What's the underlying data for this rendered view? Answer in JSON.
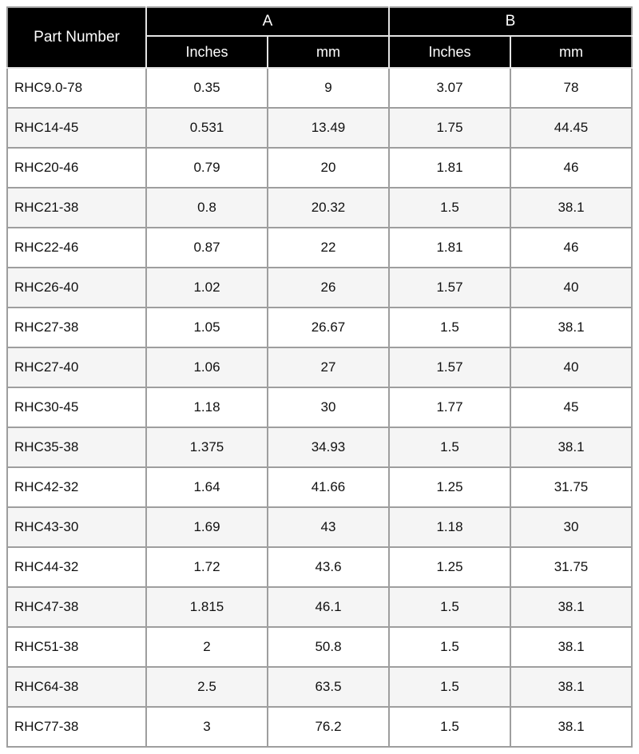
{
  "chart_data": {
    "type": "table",
    "title": "",
    "column_groups": [
      {
        "label": "Part Number",
        "span": 1
      },
      {
        "label": "A",
        "span": 2
      },
      {
        "label": "B",
        "span": 2
      }
    ],
    "sub_headers": [
      "Inches",
      "mm",
      "Inches",
      "mm"
    ],
    "rows": [
      [
        "RHC9.0-78",
        "0.35",
        "9",
        "3.07",
        "78"
      ],
      [
        "RHC14-45",
        "0.531",
        "13.49",
        "1.75",
        "44.45"
      ],
      [
        "RHC20-46",
        "0.79",
        "20",
        "1.81",
        "46"
      ],
      [
        "RHC21-38",
        "0.8",
        "20.32",
        "1.5",
        "38.1"
      ],
      [
        "RHC22-46",
        "0.87",
        "22",
        "1.81",
        "46"
      ],
      [
        "RHC26-40",
        "1.02",
        "26",
        "1.57",
        "40"
      ],
      [
        "RHC27-38",
        "1.05",
        "26.67",
        "1.5",
        "38.1"
      ],
      [
        "RHC27-40",
        "1.06",
        "27",
        "1.57",
        "40"
      ],
      [
        "RHC30-45",
        "1.18",
        "30",
        "1.77",
        "45"
      ],
      [
        "RHC35-38",
        "1.375",
        "34.93",
        "1.5",
        "38.1"
      ],
      [
        "RHC42-32",
        "1.64",
        "41.66",
        "1.25",
        "31.75"
      ],
      [
        "RHC43-30",
        "1.69",
        "43",
        "1.18",
        "30"
      ],
      [
        "RHC44-32",
        "1.72",
        "43.6",
        "1.25",
        "31.75"
      ],
      [
        "RHC47-38",
        "1.815",
        "46.1",
        "1.5",
        "38.1"
      ],
      [
        "RHC51-38",
        "2",
        "50.8",
        "1.5",
        "38.1"
      ],
      [
        "RHC64-38",
        "2.5",
        "63.5",
        "1.5",
        "38.1"
      ],
      [
        "RHC77-38",
        "3",
        "76.2",
        "1.5",
        "38.1"
      ]
    ]
  },
  "colors": {
    "header_bg": "#000000",
    "header_text": "#ffffff",
    "header_border": "#e3e3e3",
    "grid": "#9e9e9e",
    "row_bg": "#ffffff",
    "row_alt_bg": "#f5f5f5",
    "page_bg": "#ffffff"
  }
}
